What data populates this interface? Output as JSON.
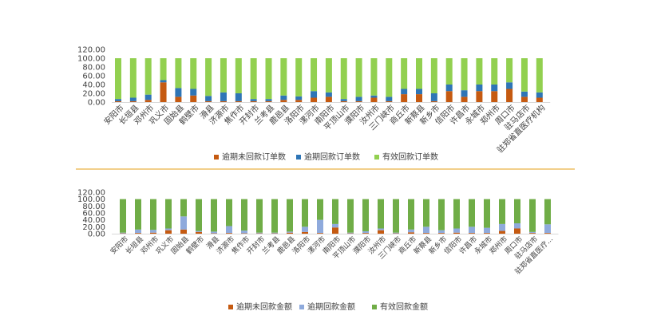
{
  "chart_data": [
    {
      "type": "bar",
      "stacked": true,
      "title": "",
      "xlabel": "",
      "ylabel": "",
      "ylim": [
        0,
        120
      ],
      "ytick_labels": [
        "0.00",
        "20.00",
        "40.00",
        "60.00",
        "80.00",
        "100.00",
        "120.00"
      ],
      "grid": false,
      "legend_position": "bottom",
      "categories": [
        "安阳市",
        "长垣县",
        "邓州市",
        "巩义市",
        "固始县",
        "鹤壁市",
        "滑县",
        "济源市",
        "焦作市",
        "开封市",
        "兰考县",
        "鹿邑县",
        "洛阳市",
        "漯河市",
        "南阳市",
        "平顶山市",
        "濮阳市",
        "汝州市",
        "三门峡市",
        "商丘市",
        "新蔡县",
        "新乡市",
        "信阳市",
        "许昌市",
        "永城市",
        "郑州市",
        "周口市",
        "驻马店市",
        "驻郑省直医疗机构"
      ],
      "series": [
        {
          "name": "逾期未回款订单数",
          "color": "#c55a11",
          "values": [
            2,
            2,
            5,
            45,
            12,
            15,
            2,
            2,
            2,
            2,
            2,
            5,
            5,
            10,
            12,
            2,
            2,
            10,
            2,
            18,
            18,
            2,
            25,
            12,
            25,
            25,
            30,
            12,
            10
          ]
        },
        {
          "name": "逾期回款订单数",
          "color": "#2e75b6",
          "values": [
            5,
            8,
            12,
            5,
            20,
            15,
            12,
            20,
            18,
            5,
            5,
            10,
            8,
            15,
            10,
            5,
            10,
            5,
            10,
            12,
            12,
            18,
            15,
            15,
            15,
            15,
            15,
            12,
            12
          ]
        },
        {
          "name": "有效回款订单数",
          "color": "#92d050",
          "values": [
            93,
            90,
            83,
            50,
            68,
            70,
            86,
            78,
            80,
            93,
            93,
            85,
            87,
            75,
            78,
            93,
            88,
            85,
            88,
            70,
            70,
            80,
            60,
            73,
            60,
            60,
            55,
            76,
            78
          ]
        }
      ]
    },
    {
      "type": "bar",
      "stacked": true,
      "title": "",
      "xlabel": "",
      "ylabel": "",
      "ylim": [
        0,
        120
      ],
      "ytick_labels": [
        "0.00",
        "20.00",
        "40.00",
        "60.00",
        "80.00",
        "100.00",
        "120.00"
      ],
      "grid": false,
      "legend_position": "bottom",
      "categories": [
        "安阳市",
        "长垣县",
        "邓州市",
        "巩义市",
        "固始县",
        "鹤壁市",
        "滑县",
        "济源市",
        "焦作市",
        "开封市",
        "兰考县",
        "鹿邑县",
        "洛阳市",
        "漯河市",
        "南阳市",
        "平顶山市",
        "濮阳市",
        "汝州市",
        "三门峡市",
        "商丘市",
        "新蔡县",
        "新乡市",
        "信阳市",
        "许昌市",
        "永城市",
        "郑州市",
        "周口市",
        "驻马店市",
        "驻郑省直医疗..."
      ],
      "series": [
        {
          "name": "逾期未回款金额",
          "color": "#c55a11",
          "values": [
            1,
            2,
            3,
            10,
            12,
            5,
            1,
            2,
            1,
            1,
            1,
            3,
            5,
            2,
            18,
            1,
            2,
            10,
            1,
            4,
            2,
            2,
            3,
            2,
            2,
            8,
            15,
            2,
            2
          ]
        },
        {
          "name": "逾期回款金额",
          "color": "#8faadc",
          "values": [
            2,
            10,
            8,
            5,
            38,
            3,
            5,
            20,
            8,
            2,
            2,
            3,
            15,
            38,
            10,
            2,
            5,
            5,
            2,
            8,
            18,
            8,
            12,
            18,
            15,
            20,
            15,
            3,
            25
          ]
        },
        {
          "name": "有效回款金额",
          "color": "#70ad47",
          "values": [
            97,
            88,
            89,
            85,
            50,
            92,
            94,
            78,
            91,
            97,
            97,
            94,
            80,
            60,
            72,
            97,
            93,
            85,
            97,
            88,
            80,
            90,
            85,
            80,
            83,
            72,
            70,
            95,
            73
          ]
        }
      ]
    }
  ]
}
